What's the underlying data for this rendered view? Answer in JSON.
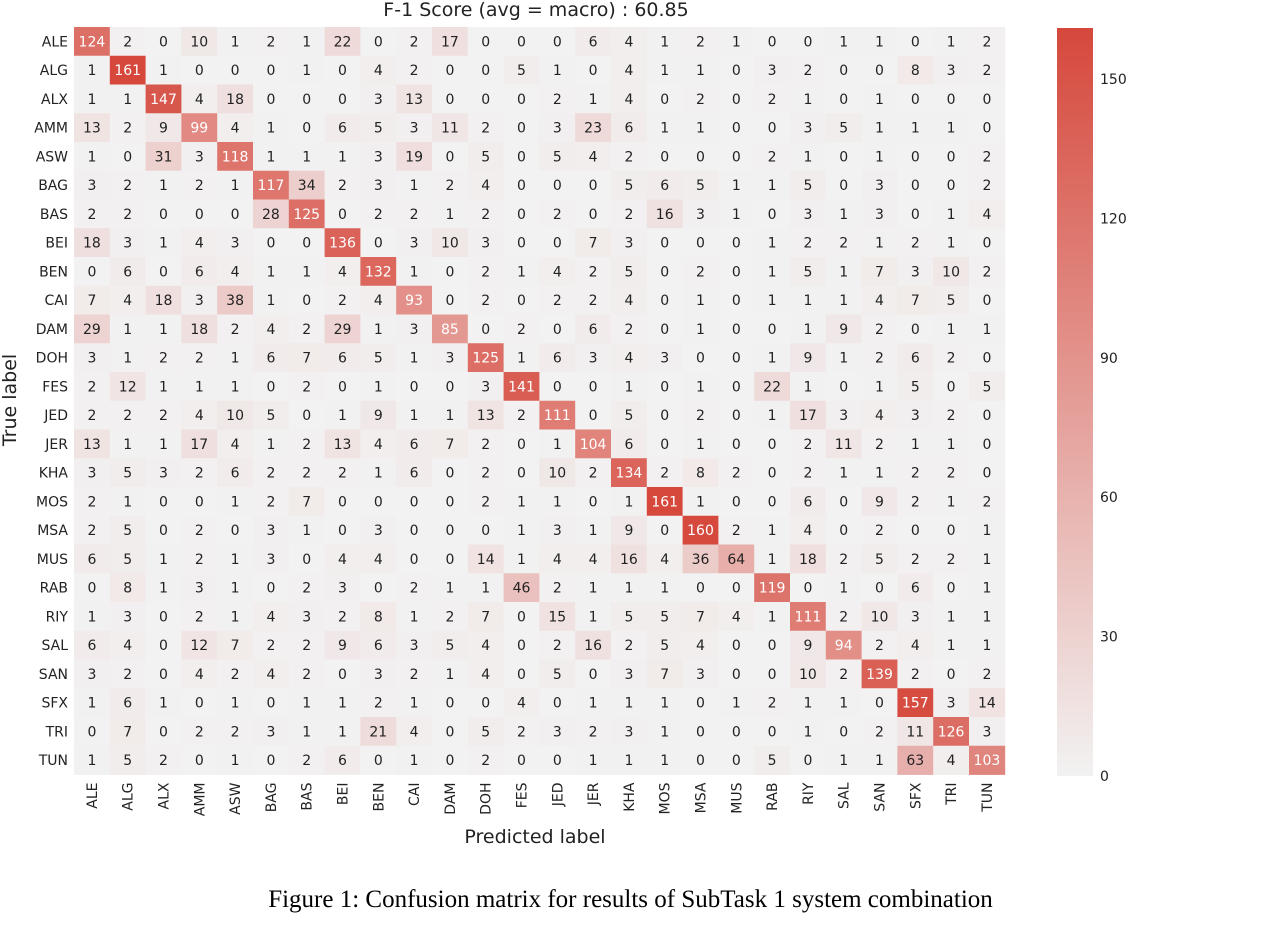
{
  "chart_data": {
    "type": "heatmap",
    "title": "F-1 Score (avg = macro) : 60.85",
    "xlabel": "Predicted label",
    "ylabel": "True label",
    "labels": [
      "ALE",
      "ALG",
      "ALX",
      "AMM",
      "ASW",
      "BAG",
      "BAS",
      "BEI",
      "BEN",
      "CAI",
      "DAM",
      "DOH",
      "FES",
      "JED",
      "JER",
      "KHA",
      "MOS",
      "MSA",
      "MUS",
      "RAB",
      "RIY",
      "SAL",
      "SAN",
      "SFX",
      "TRI",
      "TUN"
    ],
    "matrix": [
      [
        124,
        2,
        0,
        10,
        1,
        2,
        1,
        22,
        0,
        2,
        17,
        0,
        0,
        0,
        6,
        4,
        1,
        2,
        1,
        0,
        0,
        1,
        1,
        0,
        1,
        2
      ],
      [
        1,
        161,
        1,
        0,
        0,
        0,
        1,
        0,
        4,
        2,
        0,
        0,
        5,
        1,
        0,
        4,
        1,
        1,
        0,
        3,
        2,
        0,
        0,
        8,
        3,
        2
      ],
      [
        1,
        1,
        147,
        4,
        18,
        0,
        0,
        0,
        3,
        13,
        0,
        0,
        0,
        2,
        1,
        4,
        0,
        2,
        0,
        2,
        1,
        0,
        1,
        0,
        0,
        0
      ],
      [
        13,
        2,
        9,
        99,
        4,
        1,
        0,
        6,
        5,
        3,
        11,
        2,
        0,
        3,
        23,
        6,
        1,
        1,
        0,
        0,
        3,
        5,
        1,
        1,
        1,
        0
      ],
      [
        1,
        0,
        31,
        3,
        118,
        1,
        1,
        1,
        3,
        19,
        0,
        5,
        0,
        5,
        4,
        2,
        0,
        0,
        0,
        2,
        1,
        0,
        1,
        0,
        0,
        2
      ],
      [
        3,
        2,
        1,
        2,
        1,
        117,
        34,
        2,
        3,
        1,
        2,
        4,
        0,
        0,
        0,
        5,
        6,
        5,
        1,
        1,
        5,
        0,
        3,
        0,
        0,
        2
      ],
      [
        2,
        2,
        0,
        0,
        0,
        28,
        125,
        0,
        2,
        2,
        1,
        2,
        0,
        2,
        0,
        2,
        16,
        3,
        1,
        0,
        3,
        1,
        3,
        0,
        1,
        4
      ],
      [
        18,
        3,
        1,
        4,
        3,
        0,
        0,
        136,
        0,
        3,
        10,
        3,
        0,
        0,
        7,
        3,
        0,
        0,
        0,
        1,
        2,
        2,
        1,
        2,
        1,
        0
      ],
      [
        0,
        6,
        0,
        6,
        4,
        1,
        1,
        4,
        132,
        1,
        0,
        2,
        1,
        4,
        2,
        5,
        0,
        2,
        0,
        1,
        5,
        1,
        7,
        3,
        10,
        2
      ],
      [
        7,
        4,
        18,
        3,
        38,
        1,
        0,
        2,
        4,
        93,
        0,
        2,
        0,
        2,
        2,
        4,
        0,
        1,
        0,
        1,
        1,
        1,
        4,
        7,
        5,
        0
      ],
      [
        29,
        1,
        1,
        18,
        2,
        4,
        2,
        29,
        1,
        3,
        85,
        0,
        2,
        0,
        6,
        2,
        0,
        1,
        0,
        0,
        1,
        9,
        2,
        0,
        1,
        1
      ],
      [
        3,
        1,
        2,
        2,
        1,
        6,
        7,
        6,
        5,
        1,
        3,
        125,
        1,
        6,
        3,
        4,
        3,
        0,
        0,
        1,
        9,
        1,
        2,
        6,
        2,
        0
      ],
      [
        2,
        12,
        1,
        1,
        1,
        0,
        2,
        0,
        1,
        0,
        0,
        3,
        141,
        0,
        0,
        1,
        0,
        1,
        0,
        22,
        1,
        0,
        1,
        5,
        0,
        5
      ],
      [
        2,
        2,
        2,
        4,
        10,
        5,
        0,
        1,
        9,
        1,
        1,
        13,
        2,
        111,
        0,
        5,
        0,
        2,
        0,
        1,
        17,
        3,
        4,
        3,
        2,
        0
      ],
      [
        13,
        1,
        1,
        17,
        4,
        1,
        2,
        13,
        4,
        6,
        7,
        2,
        0,
        1,
        104,
        6,
        0,
        1,
        0,
        0,
        2,
        11,
        2,
        1,
        1,
        0
      ],
      [
        3,
        5,
        3,
        2,
        6,
        2,
        2,
        2,
        1,
        6,
        0,
        2,
        0,
        10,
        2,
        134,
        2,
        8,
        2,
        0,
        2,
        1,
        1,
        2,
        2,
        0
      ],
      [
        2,
        1,
        0,
        0,
        1,
        2,
        7,
        0,
        0,
        0,
        0,
        2,
        1,
        1,
        0,
        1,
        161,
        1,
        0,
        0,
        6,
        0,
        9,
        2,
        1,
        2
      ],
      [
        2,
        5,
        0,
        2,
        0,
        3,
        1,
        0,
        3,
        0,
        0,
        0,
        1,
        3,
        1,
        9,
        0,
        160,
        2,
        1,
        4,
        0,
        2,
        0,
        0,
        1
      ],
      [
        6,
        5,
        1,
        2,
        1,
        3,
        0,
        4,
        4,
        0,
        0,
        14,
        1,
        4,
        4,
        16,
        4,
        36,
        64,
        1,
        18,
        2,
        5,
        2,
        2,
        1
      ],
      [
        0,
        8,
        1,
        3,
        1,
        0,
        2,
        3,
        0,
        2,
        1,
        1,
        46,
        2,
        1,
        1,
        1,
        0,
        0,
        119,
        0,
        1,
        0,
        6,
        0,
        1
      ],
      [
        1,
        3,
        0,
        2,
        1,
        4,
        3,
        2,
        8,
        1,
        2,
        7,
        0,
        15,
        1,
        5,
        5,
        7,
        4,
        1,
        111,
        2,
        10,
        3,
        1,
        1
      ],
      [
        6,
        4,
        0,
        12,
        7,
        2,
        2,
        9,
        6,
        3,
        5,
        4,
        0,
        2,
        16,
        2,
        5,
        4,
        0,
        0,
        9,
        94,
        2,
        4,
        1,
        1
      ],
      [
        3,
        2,
        0,
        4,
        2,
        4,
        2,
        0,
        3,
        2,
        1,
        4,
        0,
        5,
        0,
        3,
        7,
        3,
        0,
        0,
        10,
        2,
        139,
        2,
        0,
        2
      ],
      [
        1,
        6,
        1,
        0,
        1,
        0,
        1,
        1,
        2,
        1,
        0,
        0,
        4,
        0,
        1,
        1,
        1,
        0,
        1,
        2,
        1,
        1,
        0,
        157,
        3,
        14
      ],
      [
        0,
        7,
        0,
        2,
        2,
        3,
        1,
        1,
        21,
        4,
        0,
        5,
        2,
        3,
        2,
        3,
        1,
        0,
        0,
        0,
        1,
        0,
        2,
        11,
        126,
        3
      ],
      [
        1,
        5,
        2,
        0,
        1,
        0,
        2,
        6,
        0,
        1,
        0,
        2,
        0,
        0,
        1,
        1,
        1,
        0,
        0,
        5,
        0,
        1,
        1,
        63,
        4,
        103
      ]
    ],
    "colorbar": {
      "min": 0,
      "max": 161,
      "ticks": [
        0,
        30,
        60,
        90,
        120,
        150
      ]
    },
    "colors": {
      "low": "#f2f2f2",
      "high": "#d6483c",
      "text_dark": "#222222",
      "text_light": "#ffffff"
    }
  },
  "caption": "Figure 1: Confusion matrix for results of SubTask 1 system combination"
}
